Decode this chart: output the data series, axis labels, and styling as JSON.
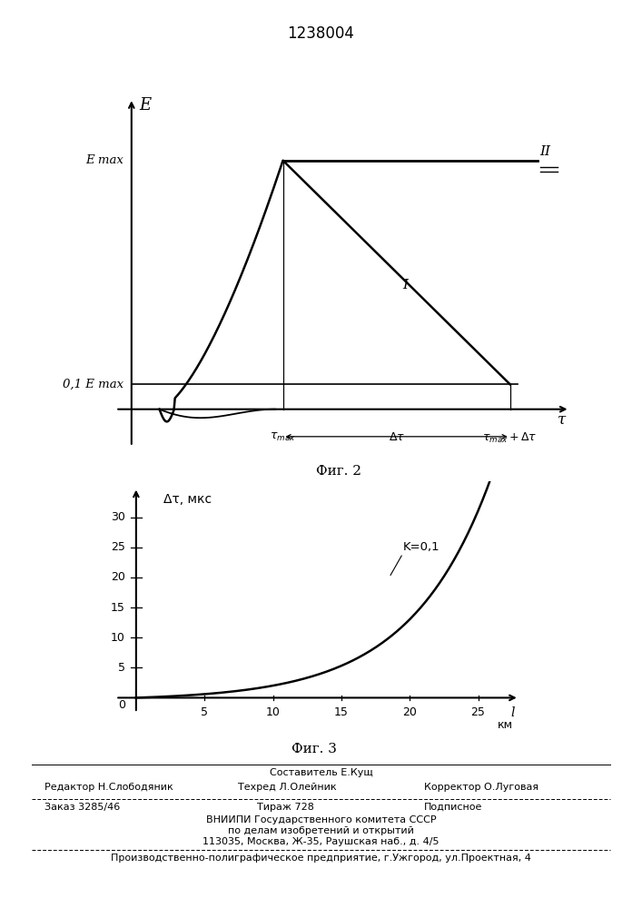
{
  "title": "1238004",
  "fig2_title": "Фиг. 2",
  "fig3_title": "Фиг. 3",
  "fig2_ylabel": "E",
  "fig2_xlabel": "τ",
  "fig3_ylabel": "Δτ, мкс",
  "fig3_xlabel": "l",
  "fig3_xlabel_unit": "км",
  "fig3_curve_label": "K=0,1",
  "fig2_label_emax": "E max",
  "fig2_label_01emax": "0,1 E max",
  "fig2_curve1_label": "I",
  "fig2_curve2_label": "II",
  "footer_line1": "Составитель Е.Кущ",
  "footer_editor": "Редактор Н.Слободяник",
  "footer_tech": "Техред Л.Олейник",
  "footer_corrector": "Корректор О.Луговая",
  "footer_order": "Заказ 3285/46",
  "footer_tirage": "Тираж 728",
  "footer_podpisnoe": "Подписное",
  "footer_vniip1": "ВНИИПИ Государственного комитета СССР",
  "footer_vniip2": "по делам изобретений и открытий",
  "footer_vniip3": "113035, Москва, Ж-35, Раушская наб., д. 4/5",
  "footer_prod": "Производственно-полиграфическое предприятие, г.Ужгород, ул.Проектная, 4",
  "bg_color": "#ffffff",
  "text_color": "#000000"
}
